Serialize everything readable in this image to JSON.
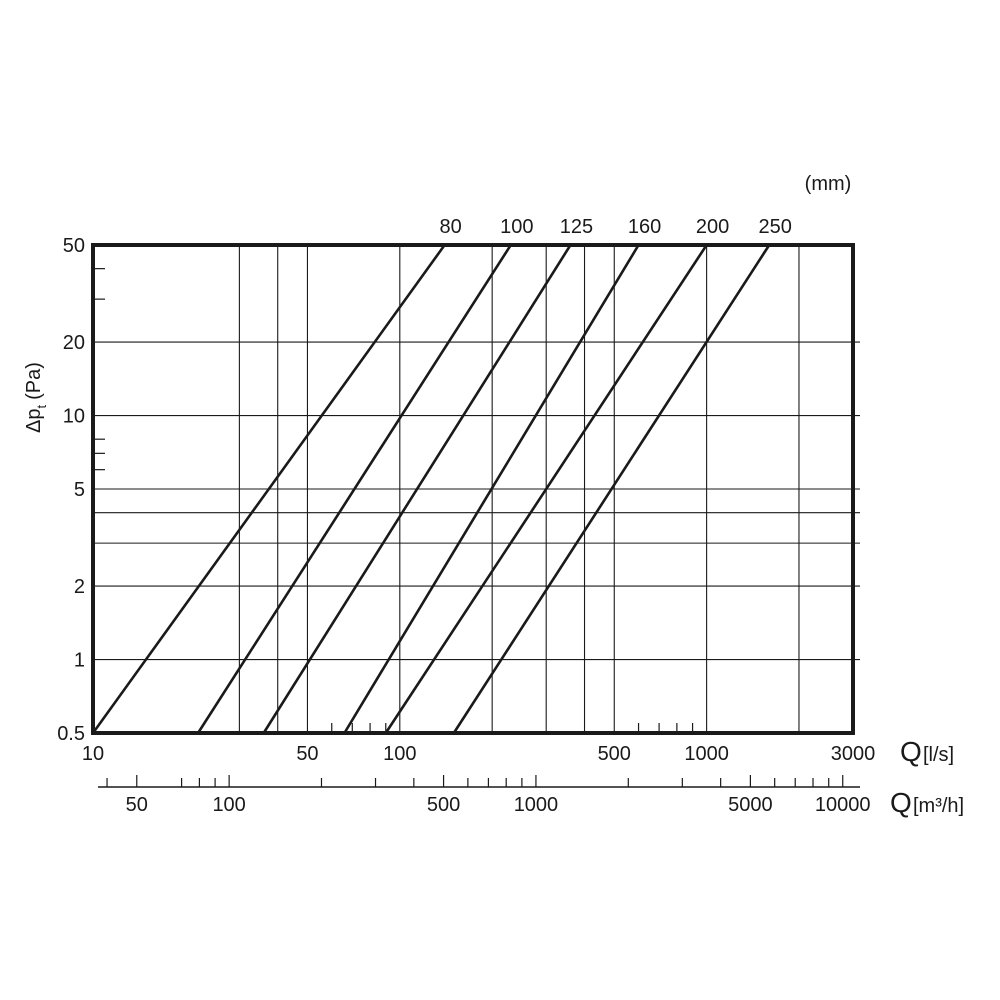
{
  "chart_data": {
    "type": "line",
    "x_scale": "log",
    "y_scale": "log",
    "grid": true,
    "xlim": [
      10,
      3000
    ],
    "ylim": [
      0.5,
      50
    ],
    "x_unit_label": {
      "symbol": "Q",
      "unit": "[l/s]"
    },
    "x2_unit_label": {
      "symbol": "Q",
      "unit": "[m³/h]"
    },
    "y_unit_label": {
      "symbol": "Δp",
      "subscript": "t",
      "unit": "(Pa)"
    },
    "series_unit": "(mm)",
    "x_tick_labels": [
      {
        "value": 10,
        "label": "10"
      },
      {
        "value": 50,
        "label": "50"
      },
      {
        "value": 100,
        "label": "100"
      },
      {
        "value": 500,
        "label": "500"
      },
      {
        "value": 1000,
        "label": "1000"
      },
      {
        "value": 3000,
        "label": "3000"
      }
    ],
    "x_minor_grid": [
      30,
      40,
      200,
      300,
      400,
      2000
    ],
    "y_tick_labels": [
      {
        "value": 50,
        "label": "50"
      },
      {
        "value": 20,
        "label": "20"
      },
      {
        "value": 10,
        "label": "10"
      },
      {
        "value": 5,
        "label": "5"
      },
      {
        "value": 2,
        "label": "2"
      },
      {
        "value": 1,
        "label": "1"
      },
      {
        "value": 0.5,
        "label": "0.5"
      }
    ],
    "y_minor_grid": [
      4,
      3
    ],
    "y_minor_ticks": [
      40,
      30,
      8,
      7,
      6
    ],
    "x_minor_ticks": [
      60,
      70,
      80,
      90,
      600,
      700,
      800,
      900
    ],
    "x2_tick_labels": [
      {
        "value": 50,
        "label": "50"
      },
      {
        "value": 100,
        "label": "100"
      },
      {
        "value": 500,
        "label": "500"
      },
      {
        "value": 1000,
        "label": "1000"
      },
      {
        "value": 5000,
        "label": "5000"
      },
      {
        "value": 10000,
        "label": "10000"
      }
    ],
    "x2_minor_ticks": [
      40,
      70,
      80,
      90,
      200,
      300,
      400,
      600,
      700,
      800,
      900,
      2000,
      3000,
      4000,
      6000,
      7000,
      8000,
      9000
    ],
    "series": [
      {
        "name": "80",
        "points": [
          [
            10,
            0.5
          ],
          [
            140,
            50
          ]
        ]
      },
      {
        "name": "100",
        "points": [
          [
            22,
            0.5
          ],
          [
            230,
            50
          ]
        ]
      },
      {
        "name": "125",
        "points": [
          [
            36,
            0.5
          ],
          [
            360,
            50
          ]
        ]
      },
      {
        "name": "160",
        "points": [
          [
            66,
            0.5
          ],
          [
            600,
            50
          ]
        ]
      },
      {
        "name": "200",
        "points": [
          [
            90,
            0.5
          ],
          [
            1000,
            50
          ]
        ]
      },
      {
        "name": "250",
        "points": [
          [
            150,
            0.5
          ],
          [
            1600,
            50
          ]
        ]
      }
    ]
  }
}
